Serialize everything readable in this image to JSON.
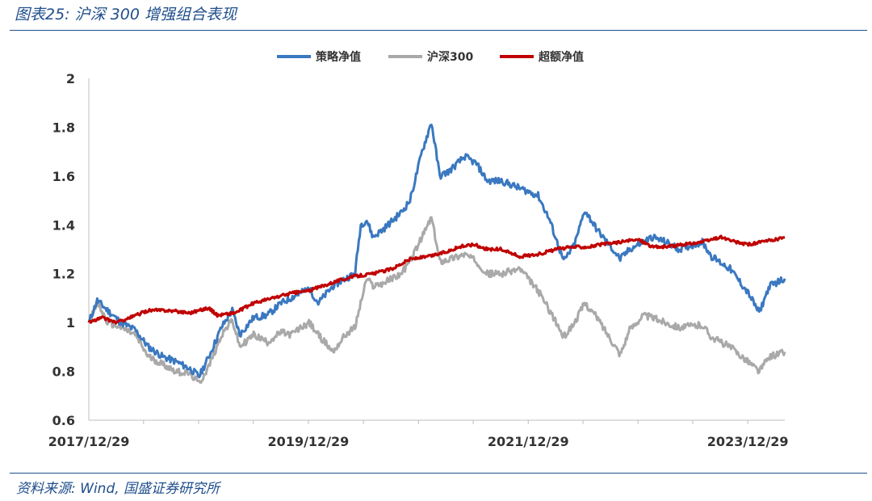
{
  "header": {
    "figure_title": "图表25:  沪深 300 增强组合表现"
  },
  "footer": {
    "source": "资料来源:  Wind,  国盛证券研究所"
  },
  "colors": {
    "strategy": "#3a78c0",
    "index": "#a9a9a9",
    "excess": "#c00000",
    "accent": "#1f4e8c"
  },
  "chart_data": {
    "type": "line",
    "title": "",
    "xlabel": "",
    "ylabel": "",
    "ylim": [
      0.6,
      2.0
    ],
    "yticks": [
      "0.6",
      "0.8",
      "1",
      "1.2",
      "1.4",
      "1.6",
      "1.8",
      "2"
    ],
    "xticks": [
      "2017/12/29",
      "2019/12/29",
      "2021/12/29",
      "2023/12/29"
    ],
    "x_range": [
      "2017/12/29",
      "2024/04/30"
    ],
    "grid": false,
    "legend_position": "top-center",
    "series": [
      {
        "name": "策略净值",
        "color": "#3a78c0",
        "points": [
          [
            "2017/12/29",
            1.0
          ],
          [
            "2018/01/26",
            1.09
          ],
          [
            "2018/03/01",
            1.05
          ],
          [
            "2018/04/15",
            1.0
          ],
          [
            "2018/06/01",
            0.97
          ],
          [
            "2018/07/15",
            0.9
          ],
          [
            "2018/09/01",
            0.86
          ],
          [
            "2018/10/15",
            0.84
          ],
          [
            "2018/12/01",
            0.81
          ],
          [
            "2018/12/31",
            0.78
          ],
          [
            "2019/02/01",
            0.86
          ],
          [
            "2019/03/15",
            0.98
          ],
          [
            "2019/04/20",
            1.05
          ],
          [
            "2019/05/15",
            0.95
          ],
          [
            "2019/06/30",
            1.02
          ],
          [
            "2019/08/15",
            1.03
          ],
          [
            "2019/09/30",
            1.08
          ],
          [
            "2019/10/31",
            1.1
          ],
          [
            "2019/12/31",
            1.14
          ],
          [
            "2020/01/31",
            1.08
          ],
          [
            "2020/03/20",
            1.15
          ],
          [
            "2020/04/30",
            1.18
          ],
          [
            "2020/06/01",
            1.2
          ],
          [
            "2020/06/20",
            1.4
          ],
          [
            "2020/07/10",
            1.42
          ],
          [
            "2020/07/31",
            1.35
          ],
          [
            "2020/09/01",
            1.38
          ],
          [
            "2020/11/01",
            1.45
          ],
          [
            "2020/12/01",
            1.5
          ],
          [
            "2021/01/10",
            1.7
          ],
          [
            "2021/02/10",
            1.82
          ],
          [
            "2021/03/10",
            1.6
          ],
          [
            "2021/04/10",
            1.62
          ],
          [
            "2021/06/01",
            1.68
          ],
          [
            "2021/07/10",
            1.65
          ],
          [
            "2021/08/15",
            1.58
          ],
          [
            "2021/10/01",
            1.58
          ],
          [
            "2021/12/01",
            1.55
          ],
          [
            "2022/01/31",
            1.52
          ],
          [
            "2022/03/10",
            1.42
          ],
          [
            "2022/04/26",
            1.25
          ],
          [
            "2022/06/01",
            1.32
          ],
          [
            "2022/07/05",
            1.46
          ],
          [
            "2022/08/15",
            1.38
          ],
          [
            "2022/10/31",
            1.26
          ],
          [
            "2022/12/01",
            1.3
          ],
          [
            "2023/01/15",
            1.33
          ],
          [
            "2023/02/15",
            1.35
          ],
          [
            "2023/03/31",
            1.33
          ],
          [
            "2023/05/15",
            1.3
          ],
          [
            "2023/07/31",
            1.33
          ],
          [
            "2023/08/31",
            1.27
          ],
          [
            "2023/10/31",
            1.22
          ],
          [
            "2023/12/31",
            1.12
          ],
          [
            "2024/02/05",
            1.04
          ],
          [
            "2024/03/10",
            1.15
          ],
          [
            "2024/04/30",
            1.18
          ]
        ]
      },
      {
        "name": "沪深300",
        "color": "#a9a9a9",
        "points": [
          [
            "2017/12/29",
            1.0
          ],
          [
            "2018/01/26",
            1.08
          ],
          [
            "2018/03/01",
            1.0
          ],
          [
            "2018/04/15",
            0.98
          ],
          [
            "2018/06/01",
            0.95
          ],
          [
            "2018/07/15",
            0.86
          ],
          [
            "2018/09/01",
            0.83
          ],
          [
            "2018/10/15",
            0.8
          ],
          [
            "2018/12/01",
            0.79
          ],
          [
            "2018/12/31",
            0.75
          ],
          [
            "2019/02/01",
            0.82
          ],
          [
            "2019/03/15",
            0.95
          ],
          [
            "2019/04/20",
            1.01
          ],
          [
            "2019/05/15",
            0.9
          ],
          [
            "2019/06/30",
            0.95
          ],
          [
            "2019/08/15",
            0.92
          ],
          [
            "2019/09/30",
            0.96
          ],
          [
            "2019/10/31",
            0.95
          ],
          [
            "2019/12/31",
            1.0
          ],
          [
            "2020/01/31",
            0.95
          ],
          [
            "2020/03/20",
            0.88
          ],
          [
            "2020/04/30",
            0.95
          ],
          [
            "2020/06/01",
            0.98
          ],
          [
            "2020/06/20",
            1.08
          ],
          [
            "2020/07/10",
            1.18
          ],
          [
            "2020/07/31",
            1.15
          ],
          [
            "2020/09/01",
            1.16
          ],
          [
            "2020/11/01",
            1.2
          ],
          [
            "2020/12/01",
            1.25
          ],
          [
            "2021/01/10",
            1.35
          ],
          [
            "2021/02/10",
            1.43
          ],
          [
            "2021/03/10",
            1.25
          ],
          [
            "2021/04/10",
            1.26
          ],
          [
            "2021/06/01",
            1.28
          ],
          [
            "2021/07/10",
            1.25
          ],
          [
            "2021/08/15",
            1.2
          ],
          [
            "2021/10/01",
            1.2
          ],
          [
            "2021/12/01",
            1.22
          ],
          [
            "2022/01/31",
            1.13
          ],
          [
            "2022/03/10",
            1.05
          ],
          [
            "2022/04/26",
            0.94
          ],
          [
            "2022/06/01",
            1.0
          ],
          [
            "2022/07/05",
            1.08
          ],
          [
            "2022/08/15",
            1.02
          ],
          [
            "2022/10/31",
            0.87
          ],
          [
            "2022/12/01",
            0.97
          ],
          [
            "2023/01/15",
            1.03
          ],
          [
            "2023/02/15",
            1.02
          ],
          [
            "2023/03/31",
            1.0
          ],
          [
            "2023/05/15",
            0.98
          ],
          [
            "2023/07/31",
            0.99
          ],
          [
            "2023/08/31",
            0.94
          ],
          [
            "2023/10/31",
            0.9
          ],
          [
            "2023/12/31",
            0.84
          ],
          [
            "2024/02/05",
            0.8
          ],
          [
            "2024/03/10",
            0.86
          ],
          [
            "2024/04/30",
            0.88
          ]
        ]
      },
      {
        "name": "超额净值",
        "color": "#c00000",
        "points": [
          [
            "2017/12/29",
            1.0
          ],
          [
            "2018/02/10",
            1.02
          ],
          [
            "2018/04/01",
            1.0
          ],
          [
            "2018/05/15",
            1.02
          ],
          [
            "2018/07/15",
            1.05
          ],
          [
            "2018/09/15",
            1.05
          ],
          [
            "2018/11/30",
            1.04
          ],
          [
            "2019/01/31",
            1.06
          ],
          [
            "2019/03/01",
            1.03
          ],
          [
            "2019/04/30",
            1.04
          ],
          [
            "2019/07/01",
            1.08
          ],
          [
            "2019/09/01",
            1.1
          ],
          [
            "2019/11/01",
            1.12
          ],
          [
            "2019/12/31",
            1.13
          ],
          [
            "2020/02/15",
            1.15
          ],
          [
            "2020/04/01",
            1.17
          ],
          [
            "2020/06/01",
            1.19
          ],
          [
            "2020/08/01",
            1.2
          ],
          [
            "2020/10/01",
            1.22
          ],
          [
            "2020/12/01",
            1.26
          ],
          [
            "2021/02/01",
            1.27
          ],
          [
            "2021/04/01",
            1.29
          ],
          [
            "2021/05/15",
            1.31
          ],
          [
            "2021/07/01",
            1.32
          ],
          [
            "2021/08/15",
            1.3
          ],
          [
            "2021/10/01",
            1.3
          ],
          [
            "2021/12/01",
            1.27
          ],
          [
            "2022/02/01",
            1.28
          ],
          [
            "2022/04/01",
            1.3
          ],
          [
            "2022/06/01",
            1.31
          ],
          [
            "2022/07/15",
            1.31
          ],
          [
            "2022/09/01",
            1.32
          ],
          [
            "2022/11/01",
            1.33
          ],
          [
            "2023/01/01",
            1.34
          ],
          [
            "2023/02/15",
            1.31
          ],
          [
            "2023/04/01",
            1.31
          ],
          [
            "2023/06/01",
            1.32
          ],
          [
            "2023/08/01",
            1.33
          ],
          [
            "2023/10/01",
            1.35
          ],
          [
            "2023/11/15",
            1.33
          ],
          [
            "2023/12/31",
            1.32
          ],
          [
            "2024/02/15",
            1.33
          ],
          [
            "2024/03/31",
            1.34
          ],
          [
            "2024/04/30",
            1.35
          ]
        ]
      }
    ]
  }
}
